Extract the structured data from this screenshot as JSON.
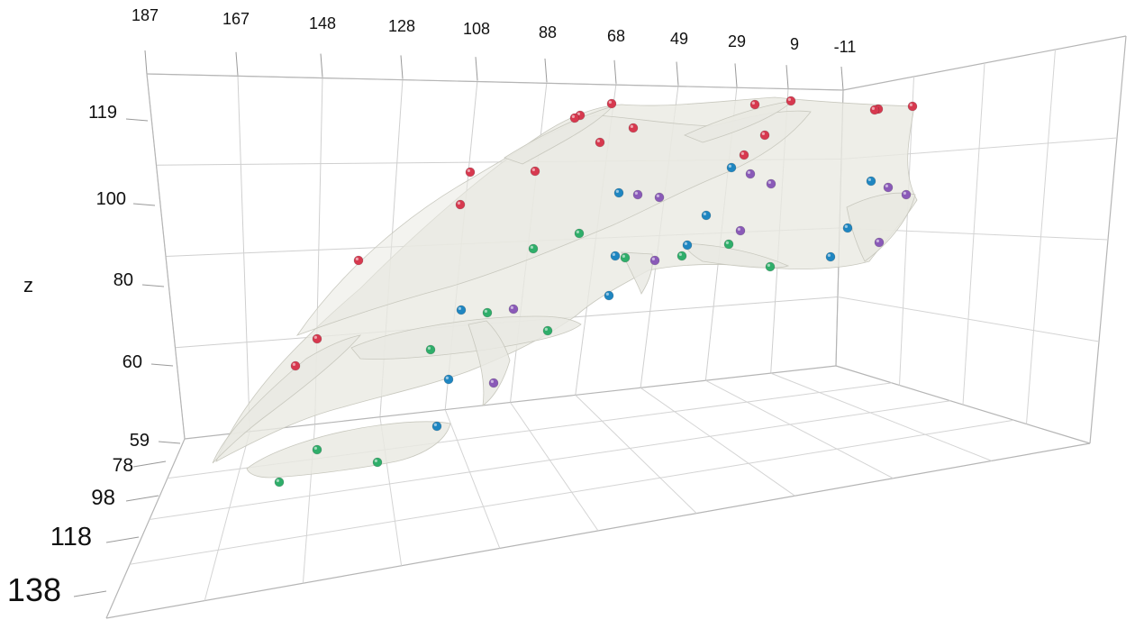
{
  "axes": {
    "x_ticks": [
      "187",
      "167",
      "148",
      "128",
      "108",
      "88",
      "68",
      "49",
      "29",
      "9",
      "-11"
    ],
    "z_ticks": [
      "119",
      "100",
      "80",
      "60",
      "59"
    ],
    "y_ticks": [
      "78",
      "98",
      "118",
      "138"
    ],
    "z_title": "z"
  },
  "landmark_colors": {
    "red": "#d7394f",
    "blue": "#1f86c1",
    "green": "#2fae6a",
    "purple": "#8a5ab8"
  },
  "surface_color": "#e9e9e2"
}
